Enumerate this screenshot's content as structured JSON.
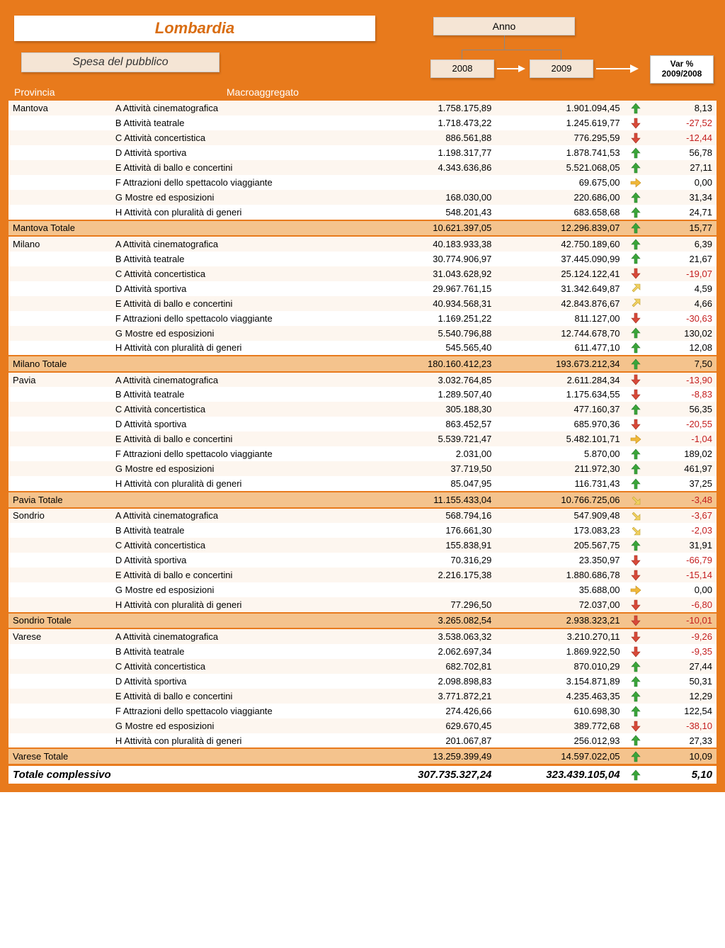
{
  "title": "Lombardia",
  "subtitle": "Spesa del pubblico",
  "anno_label": "Anno",
  "year1": "2008",
  "year2": "2009",
  "var_label_1": "Var %",
  "var_label_2": "2009/2008",
  "header_provincia": "Provincia",
  "header_macro": "Macroaggregato",
  "colors": {
    "frame": "#e87a1c",
    "subtotal_bg": "#f4c38d",
    "stripe_a": "#fdf6ef",
    "stripe_b": "#ffffff",
    "arrow_up": "#3aa53a",
    "arrow_down": "#d84a3a",
    "arrow_flat": "#f0b83a",
    "arrow_diag": "#f0d060",
    "neg_text": "#c41e1e"
  },
  "groups": [
    {
      "province": "Mantova",
      "rows": [
        {
          "macro": "A Attività cinematografica",
          "v1": "1.758.175,89",
          "v2": "1.901.094,45",
          "arrow": "up",
          "var": "8,13",
          "neg": false
        },
        {
          "macro": "B Attività teatrale",
          "v1": "1.718.473,22",
          "v2": "1.245.619,77",
          "arrow": "down",
          "var": "-27,52",
          "neg": true
        },
        {
          "macro": "C Attività concertistica",
          "v1": "886.561,88",
          "v2": "776.295,59",
          "arrow": "down",
          "var": "-12,44",
          "neg": true
        },
        {
          "macro": "D Attività sportiva",
          "v1": "1.198.317,77",
          "v2": "1.878.741,53",
          "arrow": "up",
          "var": "56,78",
          "neg": false
        },
        {
          "macro": "E Attività di ballo e concertini",
          "v1": "4.343.636,86",
          "v2": "5.521.068,05",
          "arrow": "up",
          "var": "27,11",
          "neg": false
        },
        {
          "macro": "F Attrazioni dello spettacolo viaggiante",
          "v1": "",
          "v2": "69.675,00",
          "arrow": "flat",
          "var": "0,00",
          "neg": false
        },
        {
          "macro": "G Mostre ed esposizioni",
          "v1": "168.030,00",
          "v2": "220.686,00",
          "arrow": "up",
          "var": "31,34",
          "neg": false
        },
        {
          "macro": "H Attività con pluralità di generi",
          "v1": "548.201,43",
          "v2": "683.658,68",
          "arrow": "up",
          "var": "24,71",
          "neg": false
        }
      ],
      "total": {
        "label": "Mantova Totale",
        "v1": "10.621.397,05",
        "v2": "12.296.839,07",
        "arrow": "up",
        "var": "15,77",
        "neg": false
      }
    },
    {
      "province": "Milano",
      "rows": [
        {
          "macro": "A Attività cinematografica",
          "v1": "40.183.933,38",
          "v2": "42.750.189,60",
          "arrow": "up",
          "var": "6,39",
          "neg": false
        },
        {
          "macro": "B Attività teatrale",
          "v1": "30.774.906,97",
          "v2": "37.445.090,99",
          "arrow": "up",
          "var": "21,67",
          "neg": false
        },
        {
          "macro": "C Attività concertistica",
          "v1": "31.043.628,92",
          "v2": "25.124.122,41",
          "arrow": "down",
          "var": "-19,07",
          "neg": true
        },
        {
          "macro": "D Attività sportiva",
          "v1": "29.967.761,15",
          "v2": "31.342.649,87",
          "arrow": "diag-up",
          "var": "4,59",
          "neg": false
        },
        {
          "macro": "E Attività di ballo e concertini",
          "v1": "40.934.568,31",
          "v2": "42.843.876,67",
          "arrow": "diag-up",
          "var": "4,66",
          "neg": false
        },
        {
          "macro": "F Attrazioni dello spettacolo viaggiante",
          "v1": "1.169.251,22",
          "v2": "811.127,00",
          "arrow": "down",
          "var": "-30,63",
          "neg": true
        },
        {
          "macro": "G Mostre ed esposizioni",
          "v1": "5.540.796,88",
          "v2": "12.744.678,70",
          "arrow": "up",
          "var": "130,02",
          "neg": false
        },
        {
          "macro": "H Attività con pluralità di generi",
          "v1": "545.565,40",
          "v2": "611.477,10",
          "arrow": "up",
          "var": "12,08",
          "neg": false
        }
      ],
      "total": {
        "label": "Milano Totale",
        "v1": "180.160.412,23",
        "v2": "193.673.212,34",
        "arrow": "up",
        "var": "7,50",
        "neg": false
      }
    },
    {
      "province": "Pavia",
      "rows": [
        {
          "macro": "A Attività cinematografica",
          "v1": "3.032.764,85",
          "v2": "2.611.284,34",
          "arrow": "down",
          "var": "-13,90",
          "neg": true
        },
        {
          "macro": "B Attività teatrale",
          "v1": "1.289.507,40",
          "v2": "1.175.634,55",
          "arrow": "down",
          "var": "-8,83",
          "neg": true
        },
        {
          "macro": "C Attività concertistica",
          "v1": "305.188,30",
          "v2": "477.160,37",
          "arrow": "up",
          "var": "56,35",
          "neg": false
        },
        {
          "macro": "D Attività sportiva",
          "v1": "863.452,57",
          "v2": "685.970,36",
          "arrow": "down",
          "var": "-20,55",
          "neg": true
        },
        {
          "macro": "E Attività di ballo e concertini",
          "v1": "5.539.721,47",
          "v2": "5.482.101,71",
          "arrow": "flat",
          "var": "-1,04",
          "neg": true
        },
        {
          "macro": "F Attrazioni dello spettacolo viaggiante",
          "v1": "2.031,00",
          "v2": "5.870,00",
          "arrow": "up",
          "var": "189,02",
          "neg": false
        },
        {
          "macro": "G Mostre ed esposizioni",
          "v1": "37.719,50",
          "v2": "211.972,30",
          "arrow": "up",
          "var": "461,97",
          "neg": false
        },
        {
          "macro": "H Attività con pluralità di generi",
          "v1": "85.047,95",
          "v2": "116.731,43",
          "arrow": "up",
          "var": "37,25",
          "neg": false
        }
      ],
      "total": {
        "label": "Pavia Totale",
        "v1": "11.155.433,04",
        "v2": "10.766.725,06",
        "arrow": "diag-down",
        "var": "-3,48",
        "neg": true
      }
    },
    {
      "province": "Sondrio",
      "rows": [
        {
          "macro": "A Attività cinematografica",
          "v1": "568.794,16",
          "v2": "547.909,48",
          "arrow": "diag-down",
          "var": "-3,67",
          "neg": true
        },
        {
          "macro": "B Attività teatrale",
          "v1": "176.661,30",
          "v2": "173.083,23",
          "arrow": "diag-down",
          "var": "-2,03",
          "neg": true
        },
        {
          "macro": "C Attività concertistica",
          "v1": "155.838,91",
          "v2": "205.567,75",
          "arrow": "up",
          "var": "31,91",
          "neg": false
        },
        {
          "macro": "D Attività sportiva",
          "v1": "70.316,29",
          "v2": "23.350,97",
          "arrow": "down",
          "var": "-66,79",
          "neg": true
        },
        {
          "macro": "E Attività di ballo e concertini",
          "v1": "2.216.175,38",
          "v2": "1.880.686,78",
          "arrow": "down",
          "var": "-15,14",
          "neg": true
        },
        {
          "macro": "G Mostre ed esposizioni",
          "v1": "",
          "v2": "35.688,00",
          "arrow": "flat",
          "var": "0,00",
          "neg": false
        },
        {
          "macro": "H Attività con pluralità di generi",
          "v1": "77.296,50",
          "v2": "72.037,00",
          "arrow": "down",
          "var": "-6,80",
          "neg": true
        }
      ],
      "total": {
        "label": "Sondrio Totale",
        "v1": "3.265.082,54",
        "v2": "2.938.323,21",
        "arrow": "down",
        "var": "-10,01",
        "neg": true
      }
    },
    {
      "province": "Varese",
      "rows": [
        {
          "macro": "A Attività cinematografica",
          "v1": "3.538.063,32",
          "v2": "3.210.270,11",
          "arrow": "down",
          "var": "-9,26",
          "neg": true
        },
        {
          "macro": "B Attività teatrale",
          "v1": "2.062.697,34",
          "v2": "1.869.922,50",
          "arrow": "down",
          "var": "-9,35",
          "neg": true
        },
        {
          "macro": "C Attività concertistica",
          "v1": "682.702,81",
          "v2": "870.010,29",
          "arrow": "up",
          "var": "27,44",
          "neg": false
        },
        {
          "macro": "D Attività sportiva",
          "v1": "2.098.898,83",
          "v2": "3.154.871,89",
          "arrow": "up",
          "var": "50,31",
          "neg": false
        },
        {
          "macro": "E Attività di ballo e concertini",
          "v1": "3.771.872,21",
          "v2": "4.235.463,35",
          "arrow": "up",
          "var": "12,29",
          "neg": false
        },
        {
          "macro": "F Attrazioni dello spettacolo viaggiante",
          "v1": "274.426,66",
          "v2": "610.698,30",
          "arrow": "up",
          "var": "122,54",
          "neg": false
        },
        {
          "macro": "G Mostre ed esposizioni",
          "v1": "629.670,45",
          "v2": "389.772,68",
          "arrow": "down",
          "var": "-38,10",
          "neg": true
        },
        {
          "macro": "H Attività con pluralità di generi",
          "v1": "201.067,87",
          "v2": "256.012,93",
          "arrow": "up",
          "var": "27,33",
          "neg": false
        }
      ],
      "total": {
        "label": "Varese Totale",
        "v1": "13.259.399,49",
        "v2": "14.597.022,05",
        "arrow": "up",
        "var": "10,09",
        "neg": false
      }
    }
  ],
  "grand_total": {
    "label": "Totale complessivo",
    "v1": "307.735.327,24",
    "v2": "323.439.105,04",
    "arrow": "up",
    "var": "5,10",
    "neg": false
  }
}
